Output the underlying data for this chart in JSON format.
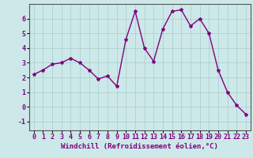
{
  "x": [
    0,
    1,
    2,
    3,
    4,
    5,
    6,
    7,
    8,
    9,
    10,
    11,
    12,
    13,
    14,
    15,
    16,
    17,
    18,
    19,
    20,
    21,
    22,
    23
  ],
  "y": [
    2.2,
    2.5,
    2.9,
    3.0,
    3.3,
    3.0,
    2.5,
    1.9,
    2.1,
    1.4,
    4.6,
    6.5,
    4.0,
    3.1,
    5.3,
    6.5,
    6.6,
    5.5,
    6.0,
    5.0,
    2.5,
    1.0,
    0.1,
    -0.5
  ],
  "line_color": "#800080",
  "marker": "*",
  "marker_size": 3,
  "bg_color": "#cce8e8",
  "grid_color": "#aacccc",
  "xlabel": "Windchill (Refroidissement éolien,°C)",
  "xlabel_fontsize": 6.5,
  "ylabel_ticks": [
    -1,
    0,
    1,
    2,
    3,
    4,
    5,
    6
  ],
  "xtick_labels": [
    "0",
    "1",
    "2",
    "3",
    "4",
    "5",
    "6",
    "7",
    "8",
    "9",
    "10",
    "11",
    "12",
    "13",
    "14",
    "15",
    "16",
    "17",
    "18",
    "19",
    "20",
    "21",
    "22",
    "23"
  ],
  "ylim": [
    -1.6,
    7.0
  ],
  "xlim": [
    -0.5,
    23.5
  ],
  "tick_fontsize": 6.0,
  "label_color": "#800080",
  "line_width": 1.0
}
